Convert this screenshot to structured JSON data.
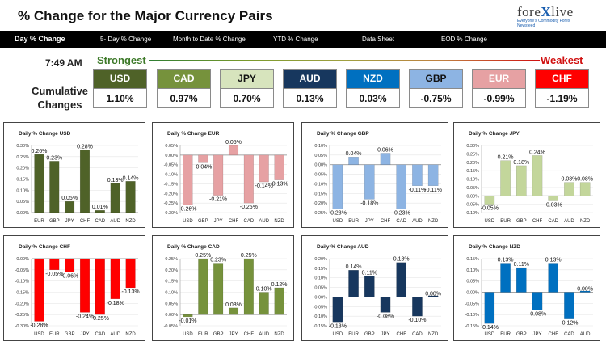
{
  "header": {
    "title": "% Change for the Major Currency Pairs",
    "logo_text": "forexlive",
    "logo_tagline": "Everyone's Commodity Forex Newsfeed"
  },
  "tabs": [
    {
      "label": "Day % Change",
      "active": true
    },
    {
      "label": "5- Day % Change",
      "active": false
    },
    {
      "label": "Month to Date % Change",
      "active": false
    },
    {
      "label": "YTD % Change",
      "active": false
    },
    {
      "label": "Data Sheet",
      "active": false
    },
    {
      "label": "EOD % Change",
      "active": false
    }
  ],
  "time": "7:49 AM",
  "strongest_label": "Strongest",
  "weakest_label": "Weakest",
  "cumulative_label": "Cumulative Changes",
  "currencies": [
    {
      "name": "USD",
      "value": "1.10%",
      "bg": "#4f6228",
      "fg": "#ffffff"
    },
    {
      "name": "CAD",
      "value": "0.97%",
      "bg": "#76923c",
      "fg": "#ffffff"
    },
    {
      "name": "JPY",
      "value": "0.70%",
      "bg": "#d7e4bd",
      "fg": "#111111"
    },
    {
      "name": "AUD",
      "value": "0.13%",
      "bg": "#17375e",
      "fg": "#ffffff"
    },
    {
      "name": "NZD",
      "value": "0.03%",
      "bg": "#0070c0",
      "fg": "#ffffff"
    },
    {
      "name": "GBP",
      "value": "-0.75%",
      "bg": "#8db4e3",
      "fg": "#111111"
    },
    {
      "name": "EUR",
      "value": "-0.99%",
      "bg": "#e6a1a3",
      "fg": "#ffffff"
    },
    {
      "name": "CHF",
      "value": "-1.19%",
      "bg": "#ff0000",
      "fg": "#ffffff"
    }
  ],
  "chart_data": [
    {
      "type": "bar",
      "title": "Daily % Change USD",
      "color": "#4f6228",
      "categories": [
        "EUR",
        "GBP",
        "JPY",
        "CHF",
        "CAD",
        "AUD",
        "NZD"
      ],
      "values": [
        0.26,
        0.23,
        0.05,
        0.28,
        0.01,
        0.13,
        0.14
      ],
      "labels": [
        "0.26%",
        "0.23%",
        "0.05%",
        "0.28%",
        "0.01%",
        "0.13%",
        "0.14%"
      ],
      "ylim": [
        0,
        0.3
      ],
      "yticks": [
        0,
        0.05,
        0.1,
        0.15,
        0.2,
        0.25,
        0.3
      ],
      "ytick_labels": [
        "0.00%",
        "0.05%",
        "0.10%",
        "0.15%",
        "0.20%",
        "0.25%",
        "0.30%"
      ]
    },
    {
      "type": "bar",
      "title": "Daily % Change EUR",
      "color": "#e6a1a3",
      "categories": [
        "USD",
        "GBP",
        "JPY",
        "CHF",
        "CAD",
        "AUD",
        "NZD"
      ],
      "values": [
        -0.26,
        -0.04,
        -0.21,
        0.05,
        -0.25,
        -0.14,
        -0.13
      ],
      "labels": [
        "-0.26%",
        "-0.04%",
        "-0.21%",
        "0.05%",
        "-0.25%",
        "-0.14%",
        "-0.13%"
      ],
      "ylim": [
        -0.3,
        0.05
      ],
      "yticks": [
        0.05,
        0,
        -0.05,
        -0.1,
        -0.15,
        -0.2,
        -0.25,
        -0.3
      ],
      "ytick_labels": [
        "0.05%",
        "0.00%",
        "-0.05%",
        "-0.10%",
        "-0.15%",
        "-0.20%",
        "-0.25%",
        "-0.30%"
      ]
    },
    {
      "type": "bar",
      "title": "Daily % Change GBP",
      "color": "#8db4e3",
      "categories": [
        "USD",
        "EUR",
        "JPY",
        "CHF",
        "CAD",
        "AUD",
        "NZD"
      ],
      "values": [
        -0.23,
        0.04,
        -0.18,
        0.06,
        -0.23,
        -0.11,
        -0.11
      ],
      "labels": [
        "-0.23%",
        "0.04%",
        "-0.18%",
        "0.06%",
        "-0.23%",
        "-0.11%",
        "-0.11%"
      ],
      "ylim": [
        -0.25,
        0.1
      ],
      "yticks": [
        0.1,
        0.05,
        0,
        -0.05,
        -0.1,
        -0.15,
        -0.2,
        -0.25
      ],
      "ytick_labels": [
        "0.10%",
        "0.05%",
        "0.00%",
        "-0.05%",
        "-0.10%",
        "-0.15%",
        "-0.20%",
        "-0.25%"
      ]
    },
    {
      "type": "bar",
      "title": "Daily % Change JPY",
      "color": "#c3d69b",
      "categories": [
        "USD",
        "EUR",
        "GBP",
        "CHF",
        "CAD",
        "AUD",
        "NZD"
      ],
      "values": [
        -0.05,
        0.21,
        0.18,
        0.24,
        -0.03,
        0.08,
        0.08
      ],
      "labels": [
        "-0.05%",
        "0.21%",
        "0.18%",
        "0.24%",
        "-0.03%",
        "0.08%",
        "0.08%"
      ],
      "ylim": [
        -0.1,
        0.3
      ],
      "yticks": [
        0.3,
        0.25,
        0.2,
        0.15,
        0.1,
        0.05,
        0,
        -0.05,
        -0.1
      ],
      "ytick_labels": [
        "0.30%",
        "0.25%",
        "0.20%",
        "0.15%",
        "0.10%",
        "0.05%",
        "0.00%",
        "-0.05%",
        "-0.10%"
      ]
    },
    {
      "type": "bar",
      "title": "Daily % Change CHF",
      "color": "#ff0000",
      "categories": [
        "USD",
        "EUR",
        "GBP",
        "JPY",
        "CAD",
        "AUD",
        "NZD"
      ],
      "values": [
        -0.28,
        -0.05,
        -0.06,
        -0.24,
        -0.25,
        -0.18,
        -0.13
      ],
      "labels": [
        "-0.28%",
        "-0.05%",
        "-0.06%",
        "-0.24%",
        "-0.25%",
        "-0.18%",
        "-0.13%"
      ],
      "ylim": [
        -0.3,
        0
      ],
      "yticks": [
        0,
        -0.05,
        -0.1,
        -0.15,
        -0.2,
        -0.25,
        -0.3
      ],
      "ytick_labels": [
        "0.00%",
        "-0.05%",
        "-0.10%",
        "-0.15%",
        "-0.20%",
        "-0.25%",
        "-0.30%"
      ]
    },
    {
      "type": "bar",
      "title": "Daily % Change CAD",
      "color": "#76923c",
      "categories": [
        "USD",
        "EUR",
        "GBP",
        "JPY",
        "CHF",
        "AUD",
        "NZD"
      ],
      "values": [
        -0.01,
        0.25,
        0.23,
        0.03,
        0.25,
        0.1,
        0.12
      ],
      "labels": [
        "-0.01%",
        "0.25%",
        "0.23%",
        "0.03%",
        "0.25%",
        "0.10%",
        "0.12%"
      ],
      "ylim": [
        -0.05,
        0.25
      ],
      "yticks": [
        0.25,
        0.2,
        0.15,
        0.1,
        0.05,
        0,
        -0.05
      ],
      "ytick_labels": [
        "0.25%",
        "0.20%",
        "0.15%",
        "0.10%",
        "0.05%",
        "0.00%",
        "-0.05%"
      ]
    },
    {
      "type": "bar",
      "title": "Daily % Change AUD",
      "color": "#17375e",
      "categories": [
        "USD",
        "EUR",
        "GBP",
        "JPY",
        "CHF",
        "CAD",
        "NZD"
      ],
      "values": [
        -0.13,
        0.14,
        0.11,
        -0.08,
        0.18,
        -0.1,
        0.0
      ],
      "labels": [
        "-0.13%",
        "0.14%",
        "0.11%",
        "-0.08%",
        "0.18%",
        "-0.10%",
        "0.00%"
      ],
      "ylim": [
        -0.15,
        0.2
      ],
      "yticks": [
        0.2,
        0.15,
        0.1,
        0.05,
        0,
        -0.05,
        -0.1,
        -0.15
      ],
      "ytick_labels": [
        "0.20%",
        "0.15%",
        "0.10%",
        "0.05%",
        "0.00%",
        "-0.05%",
        "-0.10%",
        "-0.15%"
      ]
    },
    {
      "type": "bar",
      "title": "Daily % Change NZD",
      "color": "#0070c0",
      "categories": [
        "USD",
        "EUR",
        "GBP",
        "JPY",
        "CHF",
        "CAD",
        "AUD"
      ],
      "values": [
        -0.14,
        0.13,
        0.11,
        -0.08,
        0.13,
        -0.12,
        0.0
      ],
      "labels": [
        "-0.14%",
        "0.13%",
        "0.11%",
        "-0.08%",
        "0.13%",
        "-0.12%",
        "0.00%"
      ],
      "ylim": [
        -0.15,
        0.15
      ],
      "yticks": [
        0.15,
        0.1,
        0.05,
        0,
        -0.05,
        -0.1,
        -0.15
      ],
      "ytick_labels": [
        "0.15%",
        "0.10%",
        "0.05%",
        "0.00%",
        "-0.05%",
        "-0.10%",
        "-0.15%"
      ]
    }
  ]
}
